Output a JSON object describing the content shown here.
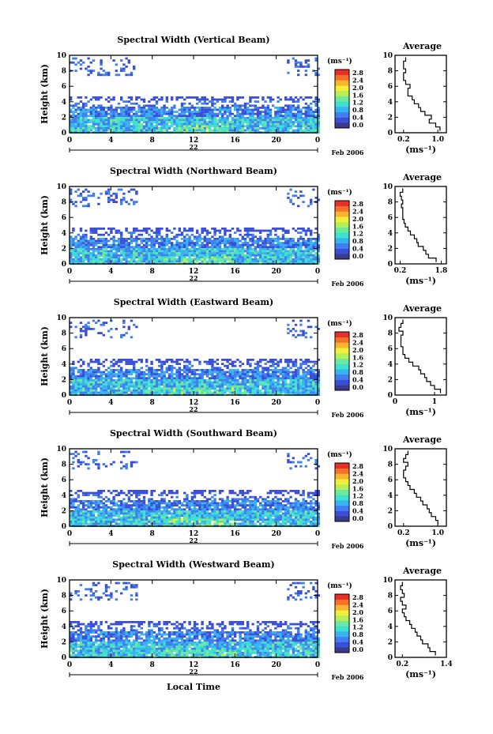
{
  "figure": {
    "month_label": "Feb 2006",
    "local_time_label": "Local Time",
    "colorbar_unit": "(ms⁻¹)",
    "colorbar_ticks": [
      "2.8",
      "2.4",
      "2.0",
      "1.6",
      "1.2",
      "0.8",
      "0.4",
      "0.0"
    ],
    "avg_title": "Average",
    "avg_unit": "(ms⁻¹)",
    "colormap": [
      "#3b3b8c",
      "#3a4ed6",
      "#3f7ff0",
      "#36b3f0",
      "#3ee0d0",
      "#6ee89a",
      "#b6ef5a",
      "#f0ef3a",
      "#f9b531",
      "#f7702a",
      "#e8302a"
    ]
  },
  "chart_data": [
    {
      "type": "heatmap",
      "title": "Spectral Width (Vertical Beam)",
      "ylabel": "Height (km)",
      "xlabel": "",
      "xlim": [
        0,
        24
      ],
      "ylim": [
        0,
        10
      ],
      "x_ticks": [
        "0",
        "4",
        "8",
        "12",
        "16",
        "20",
        "0"
      ],
      "y_ticks": [
        "0",
        "2",
        "4",
        "6",
        "8",
        "10"
      ],
      "date_label": "22",
      "average": {
        "type": "line",
        "title": "Average",
        "xlim": [
          0.0,
          1.2
        ],
        "x_ticks": [
          "0.2",
          "1.0"
        ],
        "y_ticks": [
          "0",
          "2",
          "4",
          "6",
          "8",
          "10"
        ],
        "height": [
          0.5,
          1.0,
          1.5,
          2.0,
          2.5,
          3.0,
          3.5,
          4.0,
          4.5,
          5.0,
          5.5,
          6.0,
          6.5,
          7.0,
          7.5,
          8.0,
          8.5,
          9.0,
          9.5
        ],
        "width": [
          1.05,
          0.95,
          0.8,
          0.85,
          0.7,
          0.6,
          0.55,
          0.45,
          0.4,
          0.3,
          0.3,
          0.35,
          0.25,
          0.2,
          0.2,
          0.25,
          0.2,
          0.2,
          0.25
        ]
      }
    },
    {
      "type": "heatmap",
      "title": "Spectral Width (Northward Beam)",
      "ylabel": "Height (km)",
      "xlabel": "",
      "xlim": [
        0,
        24
      ],
      "ylim": [
        0,
        10
      ],
      "x_ticks": [
        "0",
        "4",
        "8",
        "12",
        "16",
        "20",
        "0"
      ],
      "y_ticks": [
        "0",
        "2",
        "4",
        "6",
        "8",
        "10"
      ],
      "date_label": "22",
      "average": {
        "type": "line",
        "title": "Average",
        "xlim": [
          0.0,
          2.0
        ],
        "x_ticks": [
          "0.2",
          "1.8"
        ],
        "y_ticks": [
          "0",
          "2",
          "4",
          "6",
          "8",
          "10"
        ],
        "height": [
          0.5,
          1.0,
          1.5,
          2.0,
          2.5,
          3.0,
          3.5,
          4.0,
          4.5,
          5.0,
          5.5,
          6.0,
          6.5,
          7.0,
          7.5,
          8.0,
          8.5,
          9.0,
          9.5
        ],
        "width": [
          1.6,
          1.3,
          1.2,
          1.1,
          0.9,
          0.85,
          0.75,
          0.6,
          0.5,
          0.4,
          0.35,
          0.3,
          0.3,
          0.3,
          0.25,
          0.3,
          0.25,
          0.2,
          0.3
        ]
      }
    },
    {
      "type": "heatmap",
      "title": "Spectral Width (Eastward Beam)",
      "ylabel": "Height (km)",
      "xlabel": "",
      "xlim": [
        0,
        24
      ],
      "ylim": [
        0,
        10
      ],
      "x_ticks": [
        "0",
        "4",
        "8",
        "12",
        "16",
        "20",
        "0"
      ],
      "y_ticks": [
        "0",
        "2",
        "4",
        "6",
        "8",
        "10"
      ],
      "date_label": "22",
      "average": {
        "type": "line",
        "title": "Average",
        "xlim": [
          0.0,
          1.3
        ],
        "x_ticks": [
          "0",
          "1"
        ],
        "y_ticks": [
          "0",
          "2",
          "4",
          "6",
          "8",
          "10"
        ],
        "height": [
          0.5,
          1.0,
          1.5,
          2.0,
          2.5,
          3.0,
          3.5,
          4.0,
          4.5,
          5.0,
          5.5,
          6.0,
          6.5,
          7.0,
          7.5,
          8.0,
          8.5,
          9.0,
          9.5
        ],
        "width": [
          1.15,
          1.0,
          0.9,
          0.8,
          0.75,
          0.65,
          0.6,
          0.45,
          0.35,
          0.25,
          0.2,
          0.2,
          0.15,
          0.15,
          0.15,
          0.2,
          0.1,
          0.15,
          0.2
        ]
      }
    },
    {
      "type": "heatmap",
      "title": "Spectral Width (Southward Beam)",
      "ylabel": "Height (km)",
      "xlabel": "",
      "xlim": [
        0,
        24
      ],
      "ylim": [
        0,
        10
      ],
      "x_ticks": [
        "0",
        "4",
        "8",
        "12",
        "16",
        "20",
        "0"
      ],
      "y_ticks": [
        "0",
        "2",
        "4",
        "6",
        "8",
        "10"
      ],
      "date_label": "22",
      "average": {
        "type": "line",
        "title": "Average",
        "xlim": [
          0.0,
          1.2
        ],
        "x_ticks": [
          "0.2",
          "1.0"
        ],
        "y_ticks": [
          "0",
          "2",
          "4",
          "6",
          "8",
          "10"
        ],
        "height": [
          0.5,
          1.0,
          1.5,
          2.0,
          2.5,
          3.0,
          3.5,
          4.0,
          4.5,
          5.0,
          5.5,
          6.0,
          6.5,
          7.0,
          7.5,
          8.0,
          8.5,
          9.0,
          9.5
        ],
        "width": [
          1.0,
          0.95,
          0.85,
          0.8,
          0.75,
          0.65,
          0.6,
          0.5,
          0.45,
          0.35,
          0.3,
          0.25,
          0.2,
          0.2,
          0.25,
          0.3,
          0.2,
          0.25,
          0.3
        ]
      }
    },
    {
      "type": "heatmap",
      "title": "Spectral Width (Westward Beam)",
      "ylabel": "Height (km)",
      "xlabel": "Local Time",
      "xlim": [
        0,
        24
      ],
      "ylim": [
        0,
        10
      ],
      "x_ticks": [
        "0",
        "4",
        "8",
        "12",
        "16",
        "20",
        "0"
      ],
      "y_ticks": [
        "0",
        "2",
        "4",
        "6",
        "8",
        "10"
      ],
      "date_label": "22",
      "average": {
        "type": "line",
        "title": "Average",
        "xlim": [
          0.0,
          1.4
        ],
        "x_ticks": [
          "0.2",
          "1.4"
        ],
        "y_ticks": [
          "0",
          "2",
          "4",
          "6",
          "8",
          "10"
        ],
        "height": [
          0.5,
          1.0,
          1.5,
          2.0,
          2.5,
          3.0,
          3.5,
          4.0,
          4.5,
          5.0,
          5.5,
          6.0,
          6.5,
          7.0,
          7.5,
          8.0,
          8.5,
          9.0,
          9.5
        ],
        "width": [
          1.1,
          0.95,
          0.9,
          0.75,
          0.7,
          0.6,
          0.55,
          0.45,
          0.4,
          0.3,
          0.25,
          0.2,
          0.3,
          0.2,
          0.15,
          0.25,
          0.2,
          0.15,
          0.2
        ]
      }
    }
  ]
}
